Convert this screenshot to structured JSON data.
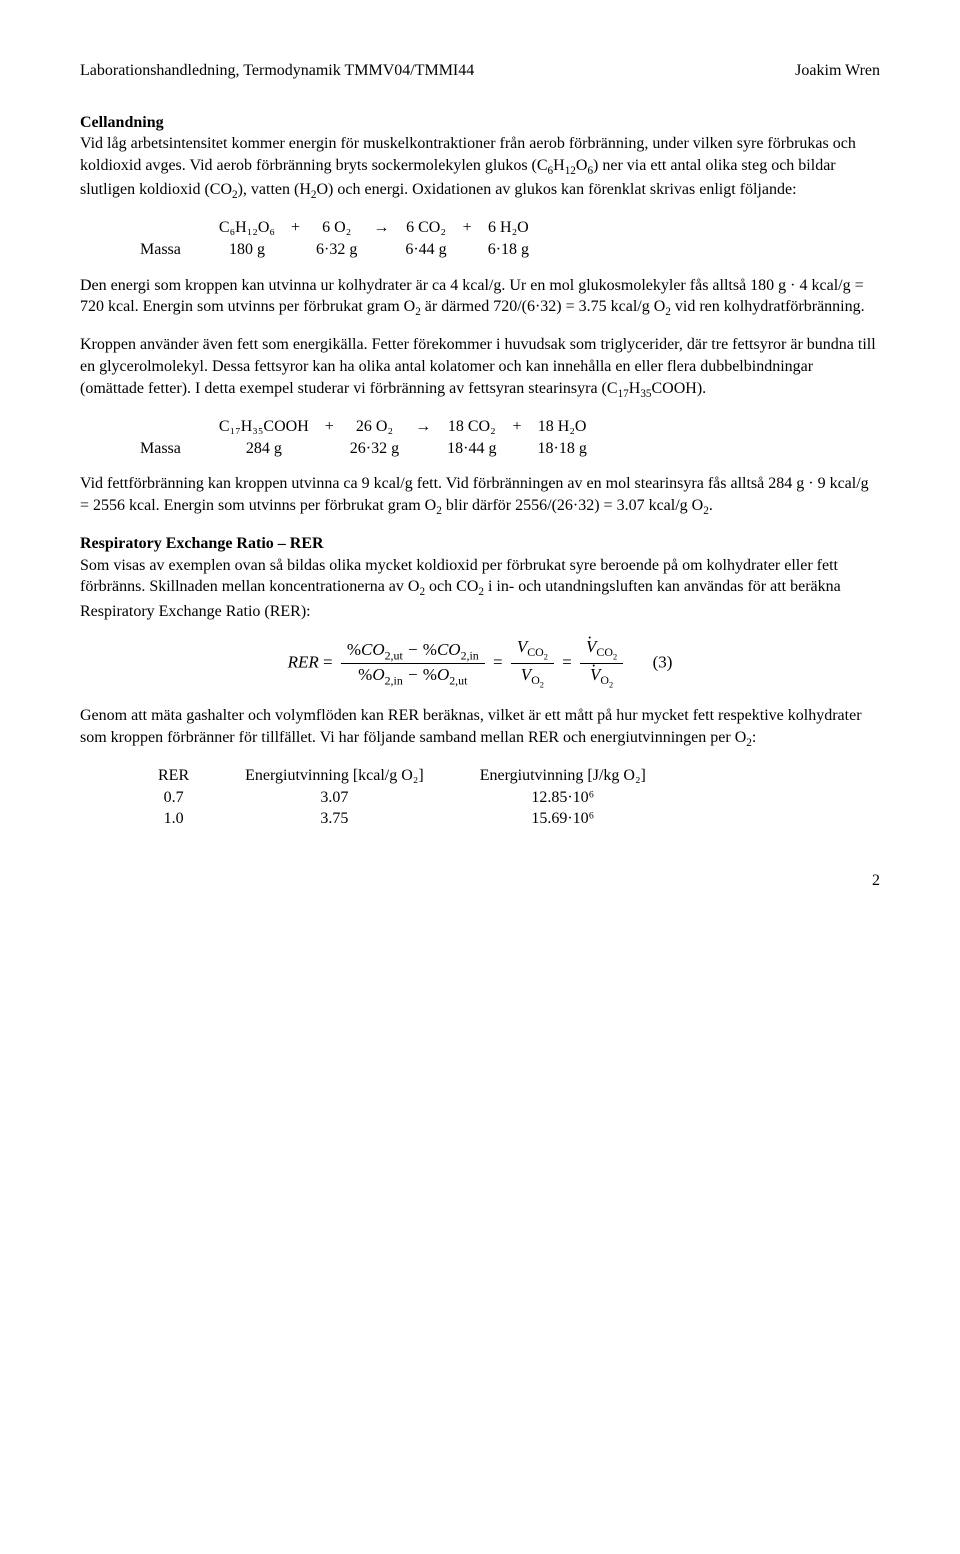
{
  "header": {
    "left": "Laborationshandledning, Termodynamik TMMV04/TMMI44",
    "right": "Joakim Wren"
  },
  "sec1": {
    "title": "Cellandning",
    "p1a": "Vid låg arbetsintensitet kommer energin för muskelkontraktioner från aerob förbränning, under vilken syre förbrukas och koldioxid avges. Vid aerob förbränning bryts sockermolekylen glukos (C",
    "p1b": ") ner via ett antal olika steg och bildar slutligen koldioxid (CO",
    "p1c": "), vatten (H",
    "p1d": "O) och energi. Oxidationen av glukos kan förenklat skrivas enligt följande:"
  },
  "eq1": {
    "massLabel": "Massa",
    "c1": "C₆H₁₂O₆",
    "plus1": "+",
    "c2": "6 O₂",
    "arrow": "→",
    "c3": "6 CO₂",
    "plus2": "+",
    "c4": "6 H₂O",
    "m1": "180 g",
    "m2": "6·32 g",
    "m3": "6·44 g",
    "m4": "6·18 g"
  },
  "p2a": "Den energi som kroppen kan utvinna ur kolhydrater är ca 4 kcal/g. Ur en mol glukosmolekyler fås alltså 180 g · 4 kcal/g = 720 kcal. Energin som utvinns per förbrukat gram O",
  "p2b": " är därmed 720/(6·32) = 3.75 kcal/g O",
  "p2c": " vid ren kolhydratförbränning.",
  "p3a": "Kroppen använder även fett som energikälla. Fetter förekommer i huvudsak som triglycerider, där tre fettsyror är bundna till en glycerolmolekyl. Dessa fettsyror kan ha olika antal kolatomer och kan innehålla en eller flera dubbelbindningar (omättade fetter). I detta exempel studerar vi förbränning av fettsyran stearinsyra (C",
  "p3b": "COOH).",
  "eq2": {
    "massLabel": "Massa",
    "c1": "C₁₇H₃₅COOH",
    "plus1": "+",
    "c2": "26 O₂",
    "arrow": "→",
    "c3": "18 CO₂",
    "plus2": "+",
    "c4": "18 H₂O",
    "m1": "284 g",
    "m2": "26·32 g",
    "m3": "18·44 g",
    "m4": "18·18 g"
  },
  "p4a": "Vid fettförbränning kan kroppen utvinna ca 9 kcal/g fett. Vid förbränningen av en mol stearinsyra fås alltså 284 g · 9 kcal/g = 2556 kcal. Energin som utvinns per förbrukat gram O",
  "p4b": " blir därför 2556/(26·32) = 3.07 kcal/g O",
  "p4c": ".",
  "sec2": {
    "title": "Respiratory Exchange Ratio – RER",
    "p1a": "Som visas av exemplen ovan så bildas olika mycket koldioxid per förbrukat syre beroende på om kolhydrater eller fett förbränns. Skillnaden mellan koncentrationerna av O",
    "p1b": " och CO",
    "p1c": " i in- och utandningsluften kan användas för att beräkna Respiratory Exchange Ratio (RER):"
  },
  "formula": {
    "lhs": "RER",
    "eqnum": "(3)"
  },
  "p5": "Genom att mäta gashalter och volymflöden kan RER beräknas, vilket är ett mått på hur mycket fett respektive kolhydrater som kroppen förbränner för tillfället. Vi har följande samband mellan RER och energiutvinningen per O",
  "p5colon": ":",
  "rer": {
    "h1": "RER",
    "h2": "Energiutvinning [kcal/g O₂]",
    "h3": "Energiutvinning [J/kg O₂]",
    "r1c1": "0.7",
    "r1c2": "3.07",
    "r1c3": "12.85·10⁶",
    "r2c1": "1.0",
    "r2c2": "3.75",
    "r2c3": "15.69·10⁶"
  },
  "pagenum": "2"
}
